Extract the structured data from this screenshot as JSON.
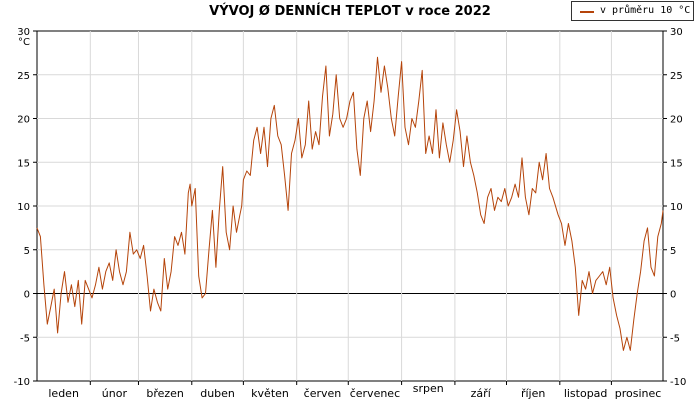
{
  "chart_data": {
    "type": "line",
    "title": "VÝVOJ Ø DENNÍCH TEPLOT v roce 2022",
    "ylabel": "°C",
    "ylim": [
      -10,
      30
    ],
    "yticks": [
      -10,
      -5,
      0,
      5,
      10,
      15,
      20,
      25,
      30
    ],
    "grid": true,
    "legend_position": "top-right",
    "months": [
      "leden",
      "únor",
      "březen",
      "duben",
      "květen",
      "červen",
      "červenec",
      "srpen",
      "září",
      "říjen",
      "listopad",
      "prosinec"
    ],
    "series": [
      {
        "name": "v průměru 10 °C",
        "color": "#b5440a",
        "x_unit": "day of year",
        "points": [
          [
            1,
            7.5
          ],
          [
            3,
            6.5
          ],
          [
            5,
            1
          ],
          [
            7,
            -3.5
          ],
          [
            9,
            -1.5
          ],
          [
            11,
            0.5
          ],
          [
            13,
            -4.5
          ],
          [
            15,
            0
          ],
          [
            17,
            2.5
          ],
          [
            19,
            -1
          ],
          [
            21,
            1
          ],
          [
            23,
            -1.5
          ],
          [
            25,
            1.5
          ],
          [
            27,
            -3.5
          ],
          [
            29,
            1.5
          ],
          [
            31,
            0.5
          ],
          [
            33,
            -0.5
          ],
          [
            35,
            1
          ],
          [
            37,
            3
          ],
          [
            39,
            0.5
          ],
          [
            41,
            2.5
          ],
          [
            43,
            3.5
          ],
          [
            45,
            1.5
          ],
          [
            47,
            5
          ],
          [
            49,
            2.5
          ],
          [
            51,
            1
          ],
          [
            53,
            2.5
          ],
          [
            55,
            7
          ],
          [
            57,
            4.5
          ],
          [
            59,
            5
          ],
          [
            61,
            4
          ],
          [
            63,
            5.5
          ],
          [
            65,
            2
          ],
          [
            67,
            -2
          ],
          [
            69,
            0.5
          ],
          [
            71,
            -1
          ],
          [
            73,
            -2
          ],
          [
            75,
            4
          ],
          [
            77,
            0.5
          ],
          [
            79,
            2.5
          ],
          [
            81,
            6.5
          ],
          [
            83,
            5.5
          ],
          [
            85,
            7
          ],
          [
            87,
            4.5
          ],
          [
            89,
            11.5
          ],
          [
            90,
            12.5
          ],
          [
            91,
            10
          ],
          [
            93,
            12
          ],
          [
            95,
            2
          ],
          [
            97,
            -0.5
          ],
          [
            99,
            0
          ],
          [
            101,
            5
          ],
          [
            103,
            9.5
          ],
          [
            105,
            3
          ],
          [
            107,
            9.5
          ],
          [
            109,
            14.5
          ],
          [
            111,
            7
          ],
          [
            113,
            5
          ],
          [
            115,
            10
          ],
          [
            117,
            7
          ],
          [
            119,
            9
          ],
          [
            120,
            10
          ],
          [
            121,
            13
          ],
          [
            123,
            14
          ],
          [
            125,
            13.5
          ],
          [
            127,
            17.5
          ],
          [
            129,
            19
          ],
          [
            131,
            16
          ],
          [
            133,
            19
          ],
          [
            135,
            14.5
          ],
          [
            137,
            20
          ],
          [
            139,
            21.5
          ],
          [
            141,
            18
          ],
          [
            143,
            17
          ],
          [
            145,
            13.5
          ],
          [
            147,
            9.5
          ],
          [
            149,
            16
          ],
          [
            151,
            17.5
          ],
          [
            153,
            20
          ],
          [
            155,
            15.5
          ],
          [
            157,
            17
          ],
          [
            159,
            22
          ],
          [
            161,
            16.5
          ],
          [
            163,
            18.5
          ],
          [
            165,
            17
          ],
          [
            167,
            22.5
          ],
          [
            169,
            26
          ],
          [
            171,
            18
          ],
          [
            173,
            20.5
          ],
          [
            175,
            25
          ],
          [
            177,
            20
          ],
          [
            179,
            19
          ],
          [
            181,
            20
          ],
          [
            183,
            22
          ],
          [
            185,
            23
          ],
          [
            187,
            16.5
          ],
          [
            189,
            13.5
          ],
          [
            191,
            20
          ],
          [
            193,
            22
          ],
          [
            195,
            18.5
          ],
          [
            197,
            22
          ],
          [
            199,
            27
          ],
          [
            201,
            23
          ],
          [
            203,
            26
          ],
          [
            205,
            23.5
          ],
          [
            207,
            20
          ],
          [
            209,
            18
          ],
          [
            211,
            22.5
          ],
          [
            213,
            26.5
          ],
          [
            215,
            19
          ],
          [
            217,
            17
          ],
          [
            219,
            20
          ],
          [
            221,
            19
          ],
          [
            223,
            22
          ],
          [
            225,
            25.5
          ],
          [
            227,
            16
          ],
          [
            229,
            18
          ],
          [
            231,
            16
          ],
          [
            233,
            21
          ],
          [
            235,
            15.5
          ],
          [
            237,
            19.5
          ],
          [
            239,
            17
          ],
          [
            241,
            15
          ],
          [
            243,
            17.5
          ],
          [
            245,
            21
          ],
          [
            247,
            18.5
          ],
          [
            249,
            14.5
          ],
          [
            251,
            18
          ],
          [
            253,
            15
          ],
          [
            255,
            13.5
          ],
          [
            257,
            11.5
          ],
          [
            259,
            9
          ],
          [
            261,
            8
          ],
          [
            263,
            11
          ],
          [
            265,
            12
          ],
          [
            267,
            9.5
          ],
          [
            269,
            11
          ],
          [
            271,
            10.5
          ],
          [
            273,
            12
          ],
          [
            275,
            10
          ],
          [
            277,
            11
          ],
          [
            279,
            12.5
          ],
          [
            281,
            11
          ],
          [
            283,
            15.5
          ],
          [
            285,
            11
          ],
          [
            287,
            9
          ],
          [
            289,
            12
          ],
          [
            291,
            11.5
          ],
          [
            293,
            15
          ],
          [
            295,
            13
          ],
          [
            297,
            16
          ],
          [
            299,
            12
          ],
          [
            301,
            11
          ],
          [
            304,
            9
          ],
          [
            306,
            8
          ],
          [
            308,
            5.5
          ],
          [
            310,
            8
          ],
          [
            312,
            6
          ],
          [
            314,
            3
          ],
          [
            316,
            -2.5
          ],
          [
            318,
            1.5
          ],
          [
            320,
            0.5
          ],
          [
            322,
            2.5
          ],
          [
            324,
            0
          ],
          [
            326,
            1.5
          ],
          [
            328,
            2
          ],
          [
            330,
            2.5
          ],
          [
            332,
            1
          ],
          [
            334,
            3
          ],
          [
            336,
            -0.5
          ],
          [
            338,
            -2.5
          ],
          [
            340,
            -4
          ],
          [
            342,
            -6.5
          ],
          [
            344,
            -5
          ],
          [
            346,
            -6.5
          ],
          [
            348,
            -3
          ],
          [
            350,
            0
          ],
          [
            352,
            2.5
          ],
          [
            354,
            6
          ],
          [
            356,
            7.5
          ],
          [
            358,
            3
          ],
          [
            360,
            2
          ],
          [
            362,
            6.5
          ],
          [
            364,
            8
          ],
          [
            365,
            9.5
          ]
        ]
      }
    ]
  }
}
